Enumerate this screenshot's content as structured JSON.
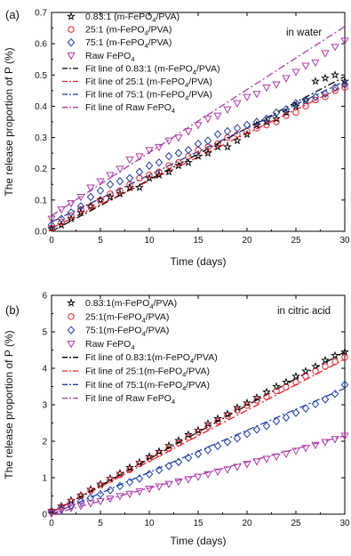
{
  "chart_data": [
    {
      "type": "scatter",
      "panel_label": "(a)",
      "condition": "in water",
      "xlabel": "Time (days)",
      "ylabel": "The release proportion of P (%)",
      "xlim": [
        0,
        30
      ],
      "ylim": [
        0,
        0.7
      ],
      "x_ticks": [
        "0",
        "5",
        "10",
        "15",
        "20",
        "25",
        "30"
      ],
      "y_ticks": [
        "0.0",
        "0.1",
        "0.2",
        "0.3",
        "0.4",
        "0.5",
        "0.6",
        "0.7"
      ],
      "legend_position": "top-left",
      "series": [
        {
          "name": "0.83:1 (m-FePO4/PVA)",
          "label_parts": [
            "0.83:1 (m-FePO",
            "4",
            "/PVA)"
          ],
          "marker": "star",
          "color": "#000000",
          "x": [
            0,
            1,
            2,
            3,
            4,
            5,
            6,
            7,
            8,
            9,
            10,
            11,
            12,
            13,
            14,
            15,
            16,
            17,
            18,
            19,
            20,
            21,
            22,
            23,
            24,
            25,
            26,
            27,
            28,
            29,
            30
          ],
          "y": [
            0.01,
            0.02,
            0.04,
            0.06,
            0.08,
            0.1,
            0.11,
            0.12,
            0.14,
            0.14,
            0.17,
            0.18,
            0.19,
            0.21,
            0.22,
            0.24,
            0.25,
            0.27,
            0.27,
            0.29,
            0.31,
            0.34,
            0.35,
            0.36,
            0.38,
            0.4,
            0.42,
            0.48,
            0.49,
            0.5,
            0.48
          ]
        },
        {
          "name": "25:1 (m-FePO4/PVA)",
          "label_parts": [
            "25:1 (m-FePO",
            "4",
            "/PVA)"
          ],
          "marker": "circle",
          "color": "#e8202a",
          "x": [
            0,
            1,
            2,
            3,
            4,
            5,
            6,
            7,
            8,
            9,
            10,
            11,
            12,
            13,
            14,
            15,
            16,
            17,
            18,
            19,
            20,
            21,
            22,
            23,
            24,
            25,
            26,
            27,
            28,
            29,
            30
          ],
          "y": [
            0.01,
            0.03,
            0.05,
            0.07,
            0.08,
            0.1,
            0.12,
            0.13,
            0.15,
            0.17,
            0.18,
            0.19,
            0.21,
            0.22,
            0.24,
            0.26,
            0.27,
            0.28,
            0.3,
            0.31,
            0.32,
            0.33,
            0.34,
            0.35,
            0.37,
            0.38,
            0.4,
            0.42,
            0.43,
            0.45,
            0.46
          ]
        },
        {
          "name": "75:1 (m-FePO4/PVA)",
          "label_parts": [
            "75:1 (m-FePO",
            "4",
            "/PVA)"
          ],
          "marker": "diamond",
          "color": "#1f3da8",
          "x": [
            0,
            1,
            2,
            3,
            4,
            5,
            6,
            7,
            8,
            9,
            10,
            11,
            12,
            13,
            14,
            15,
            16,
            17,
            18,
            19,
            20,
            21,
            22,
            23,
            24,
            25,
            26,
            27,
            28,
            29,
            30
          ],
          "y": [
            0.02,
            0.04,
            0.06,
            0.08,
            0.11,
            0.13,
            0.15,
            0.16,
            0.17,
            0.19,
            0.21,
            0.22,
            0.24,
            0.25,
            0.26,
            0.28,
            0.29,
            0.31,
            0.32,
            0.33,
            0.34,
            0.35,
            0.36,
            0.38,
            0.39,
            0.41,
            0.42,
            0.43,
            0.44,
            0.46,
            0.47
          ]
        },
        {
          "name": "Raw FePO4",
          "label_parts": [
            "Raw FePO",
            "4",
            ""
          ],
          "marker": "triangle-down",
          "color": "#b03aa8",
          "x": [
            0,
            1,
            2,
            3,
            4,
            5,
            6,
            7,
            8,
            9,
            10,
            11,
            12,
            13,
            14,
            15,
            16,
            17,
            18,
            19,
            20,
            21,
            22,
            23,
            24,
            25,
            26,
            27,
            28,
            29,
            30
          ],
          "y": [
            0.04,
            0.07,
            0.09,
            0.11,
            0.14,
            0.16,
            0.18,
            0.2,
            0.23,
            0.24,
            0.26,
            0.27,
            0.29,
            0.3,
            0.32,
            0.34,
            0.36,
            0.37,
            0.39,
            0.41,
            0.43,
            0.44,
            0.46,
            0.47,
            0.49,
            0.51,
            0.53,
            0.54,
            0.57,
            0.59,
            0.61
          ]
        }
      ],
      "fit_lines": [
        {
          "name": "Fit line of 0.83:1 (m-FePO4/PVA)",
          "label_parts": [
            "Fit line of 0.83:1 (m-FePO",
            "4",
            "/PVA)"
          ],
          "color": "#000000",
          "dash": "8,3,2,3",
          "y_at_xlim": [
            0.0,
            0.495
          ]
        },
        {
          "name": "Fit line of 25:1 (m-FePO4/PVA)",
          "label_parts": [
            "Fit line of 25:1 (m-FePO",
            "4",
            "/PVA)"
          ],
          "color": "#e8202a",
          "dash": "8,3,2,3",
          "y_at_xlim": [
            0.01,
            0.465
          ]
        },
        {
          "name": "Fit line of 75:1 (m-FePO4/PVA)",
          "label_parts": [
            "Fit line of 75:1 (m-FePO",
            "4",
            "/PVA)"
          ],
          "color": "#1f3da8",
          "dash": "8,3,2,3",
          "y_at_xlim": [
            0.03,
            0.48
          ]
        },
        {
          "name": "Fit line of Raw FePO4",
          "label_parts": [
            "Fit line of Raw FePO",
            "4",
            ""
          ],
          "color": "#b03aa8",
          "dash": "8,3,2,3",
          "y_at_xlim": [
            0.05,
            0.655
          ]
        }
      ]
    },
    {
      "type": "scatter",
      "panel_label": "(b)",
      "condition": "in citric acid",
      "xlabel": "Time (days)",
      "ylabel": "The release proportion of P (%)",
      "xlim": [
        0,
        30
      ],
      "ylim": [
        0,
        6
      ],
      "x_ticks": [
        "0",
        "5",
        "10",
        "15",
        "20",
        "25",
        "30"
      ],
      "y_ticks": [
        "0",
        "1",
        "2",
        "3",
        "4",
        "5",
        "6"
      ],
      "legend_position": "top-left",
      "series": [
        {
          "name": "0.83:1(m-FePO4/PVA)",
          "label_parts": [
            "0.83:1(m-FePO",
            "4",
            "/PVA)"
          ],
          "marker": "star",
          "color": "#000000",
          "x": [
            0,
            1,
            2,
            3,
            4,
            5,
            6,
            7,
            8,
            9,
            10,
            11,
            12,
            13,
            14,
            15,
            16,
            17,
            18,
            19,
            20,
            21,
            22,
            23,
            24,
            25,
            26,
            27,
            28,
            29,
            30
          ],
          "y": [
            0.1,
            0.22,
            0.38,
            0.52,
            0.68,
            0.82,
            0.98,
            1.12,
            1.28,
            1.42,
            1.58,
            1.72,
            1.88,
            2.02,
            2.18,
            2.3,
            2.48,
            2.62,
            2.75,
            2.92,
            3.05,
            3.2,
            3.35,
            3.5,
            3.62,
            3.78,
            3.92,
            4.05,
            4.22,
            4.35,
            4.45
          ]
        },
        {
          "name": "25:1(m-FePO4/PVA)",
          "label_parts": [
            "25:1(m-FePO",
            "4",
            "/PVA)"
          ],
          "marker": "circle",
          "color": "#e8202a",
          "x": [
            0,
            1,
            2,
            3,
            4,
            5,
            6,
            7,
            8,
            9,
            10,
            11,
            12,
            13,
            14,
            15,
            16,
            17,
            18,
            19,
            20,
            21,
            22,
            23,
            24,
            25,
            26,
            27,
            28,
            29,
            30
          ],
          "y": [
            0.08,
            0.2,
            0.35,
            0.5,
            0.65,
            0.8,
            0.95,
            1.08,
            1.22,
            1.38,
            1.52,
            1.66,
            1.8,
            1.95,
            2.1,
            2.25,
            2.4,
            2.55,
            2.7,
            2.85,
            2.98,
            3.12,
            3.22,
            3.38,
            3.48,
            3.62,
            3.78,
            3.92,
            4.05,
            4.18,
            4.3
          ]
        },
        {
          "name": "75:1(m-FePO4/PVA)",
          "label_parts": [
            "75:1(m-FePO",
            "4",
            "/PVA)"
          ],
          "marker": "diamond",
          "color": "#1f3da8",
          "x": [
            0,
            1,
            2,
            3,
            4,
            5,
            6,
            7,
            8,
            9,
            10,
            11,
            12,
            13,
            14,
            15,
            16,
            17,
            18,
            19,
            20,
            21,
            22,
            23,
            24,
            25,
            26,
            27,
            28,
            29,
            30
          ],
          "y": [
            0.05,
            0.14,
            0.24,
            0.35,
            0.45,
            0.55,
            0.66,
            0.77,
            0.88,
            0.98,
            1.1,
            1.21,
            1.32,
            1.43,
            1.55,
            1.65,
            1.76,
            1.87,
            1.98,
            2.08,
            2.2,
            2.32,
            2.42,
            2.55,
            2.65,
            2.78,
            2.9,
            3.02,
            3.15,
            3.3,
            3.55
          ]
        },
        {
          "name": "Raw FePO4",
          "label_parts": [
            "Raw FePO",
            "4",
            ""
          ],
          "marker": "triangle-down",
          "color": "#b03aa8",
          "x": [
            0,
            1,
            2,
            3,
            4,
            5,
            6,
            7,
            8,
            9,
            10,
            11,
            12,
            13,
            14,
            15,
            16,
            17,
            18,
            19,
            20,
            21,
            22,
            23,
            24,
            25,
            26,
            27,
            28,
            29,
            30
          ],
          "y": [
            0.02,
            0.1,
            0.17,
            0.23,
            0.3,
            0.36,
            0.43,
            0.5,
            0.56,
            0.63,
            0.7,
            0.76,
            0.83,
            0.9,
            0.96,
            1.03,
            1.1,
            1.17,
            1.23,
            1.3,
            1.38,
            1.45,
            1.52,
            1.58,
            1.66,
            1.74,
            1.82,
            1.9,
            1.98,
            2.06,
            2.15
          ]
        }
      ],
      "fit_lines": [
        {
          "name": "Fit line of 0.83:1(m-FePO4/PVA)",
          "label_parts": [
            "Fit line of 0.83:1(m-FePO",
            "4",
            "/PVA)"
          ],
          "color": "#000000",
          "dash": "8,3,2,3",
          "y_at_xlim": [
            0.05,
            4.45
          ]
        },
        {
          "name": "Fit line of 25:1(m-FePO4/PVA)",
          "label_parts": [
            "Fit line of 25:1(m-FePO",
            "4",
            "/PVA)"
          ],
          "color": "#e8202a",
          "dash": "8,3,2,3",
          "y_at_xlim": [
            0.05,
            4.25
          ]
        },
        {
          "name": "Fit line of 75:1(m-FePO4/PVA)",
          "label_parts": [
            "Fit line of 75:1(m-FePO",
            "4",
            "/PVA)"
          ],
          "color": "#1f3da8",
          "dash": "8,3,2,3",
          "y_at_xlim": [
            0.0,
            3.45
          ]
        },
        {
          "name": "Fit line of Raw FePO4",
          "label_parts": [
            "Fit line of Raw FePO",
            "4",
            ""
          ],
          "color": "#b03aa8",
          "dash": "8,3,2,3",
          "y_at_xlim": [
            0.0,
            2.15
          ]
        }
      ]
    }
  ]
}
